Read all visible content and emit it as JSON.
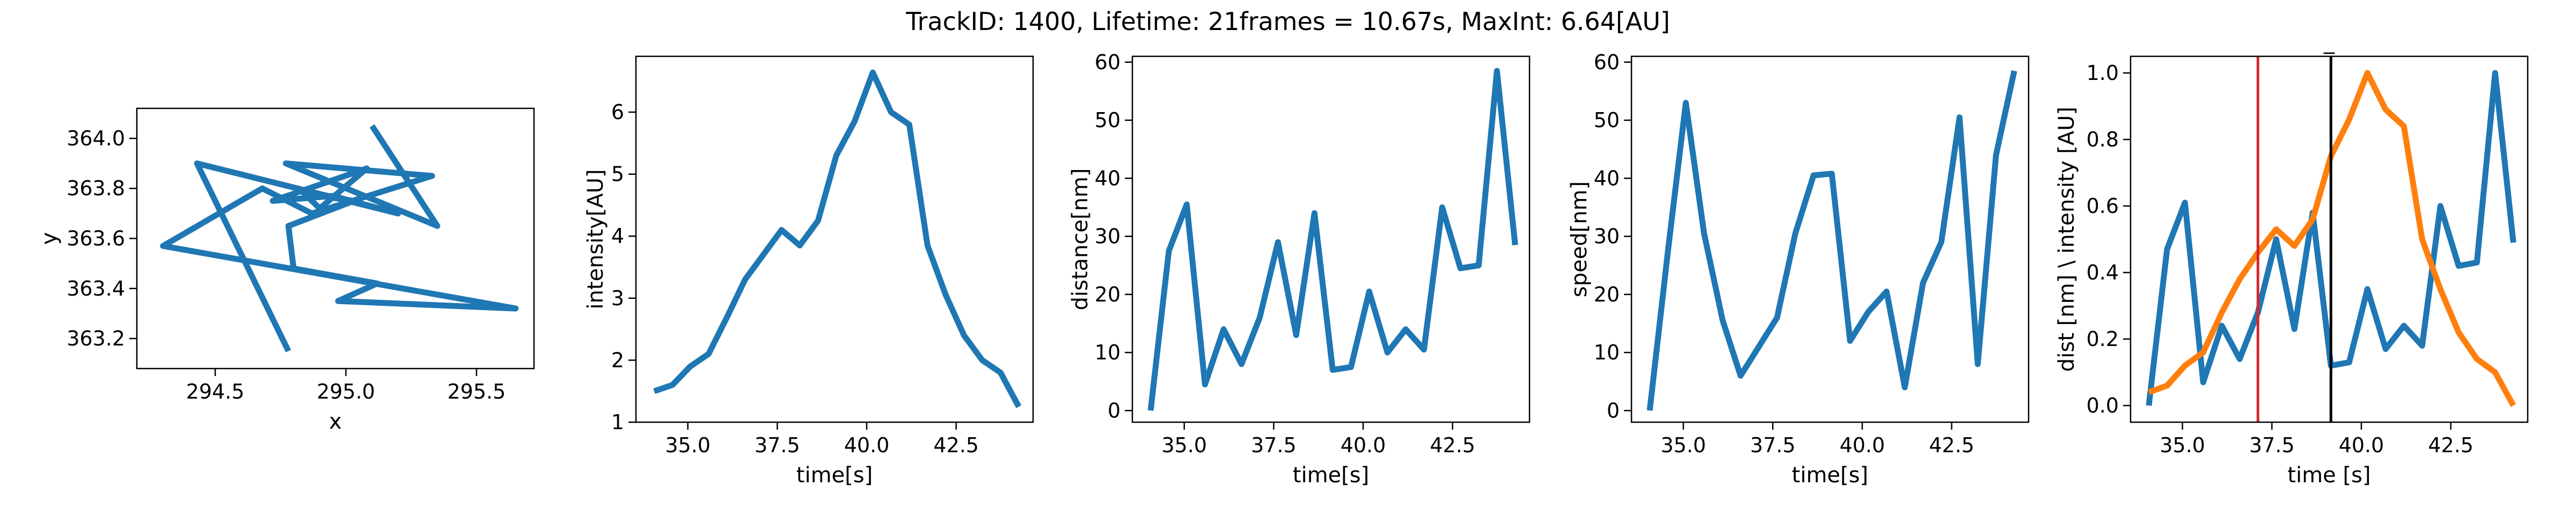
{
  "figure": {
    "title": "TrackID: 1400, Lifetime: 21frames = 10.67s, MaxInt: 6.64[AU]"
  },
  "colors": {
    "line_blue": "#1f77b4",
    "line_orange": "#ff7f0e",
    "vline_red": "#d62728",
    "vline_black": "#000000"
  },
  "chart_data": [
    {
      "type": "line",
      "xlabel": "x",
      "ylabel": "y",
      "xlim": [
        294.2,
        295.72
      ],
      "ylim": [
        363.08,
        364.12
      ],
      "xticks": [
        294.5,
        295.0,
        295.5
      ],
      "xtick_labels": [
        "294.5",
        "295.0",
        "295.5"
      ],
      "yticks": [
        363.2,
        363.4,
        363.6,
        363.8,
        364.0
      ],
      "ytick_labels": [
        "363.2",
        "363.4",
        "363.6",
        "363.8",
        "364.0"
      ],
      "grid": false,
      "series": [
        {
          "x": [
            295.1,
            295.35,
            294.77,
            295.33,
            294.87,
            294.68,
            294.3,
            295.65,
            294.97,
            295.12,
            294.8,
            294.78,
            295.03,
            294.84,
            294.9,
            295.08,
            294.72,
            294.95,
            295.2,
            294.43,
            294.78
          ],
          "y": [
            364.05,
            363.65,
            363.9,
            363.85,
            363.7,
            363.8,
            363.57,
            363.32,
            363.35,
            363.42,
            363.48,
            363.65,
            363.75,
            363.78,
            363.72,
            363.88,
            363.75,
            363.77,
            363.7,
            363.9,
            363.15
          ]
        }
      ]
    },
    {
      "type": "line",
      "xlabel": "time[s]",
      "ylabel": "intensity[AU]",
      "xlim": [
        33.55,
        44.65
      ],
      "ylim": [
        1.0,
        6.9
      ],
      "xticks": [
        35.0,
        37.5,
        40.0,
        42.5
      ],
      "xtick_labels": [
        "35.0",
        "37.5",
        "40.0",
        "42.5"
      ],
      "yticks": [
        1,
        2,
        3,
        4,
        5,
        6
      ],
      "ytick_labels": [
        "1",
        "2",
        "3",
        "4",
        "5",
        "6"
      ],
      "grid": false,
      "x": [
        34.06,
        34.57,
        35.07,
        35.58,
        36.1,
        36.6,
        37.11,
        37.62,
        38.13,
        38.64,
        39.15,
        39.66,
        40.17,
        40.68,
        41.19,
        41.7,
        42.21,
        42.72,
        43.23,
        43.74,
        44.25
      ],
      "series": [
        {
          "values": [
            1.5,
            1.6,
            1.9,
            2.1,
            2.7,
            3.3,
            3.7,
            4.1,
            3.85,
            4.25,
            5.3,
            5.85,
            6.64,
            6.0,
            5.8,
            3.85,
            3.05,
            2.4,
            2.0,
            1.8,
            1.25
          ]
        }
      ]
    },
    {
      "type": "line",
      "xlabel": "time[s]",
      "ylabel": "distance[nm]",
      "xlim": [
        33.55,
        44.65
      ],
      "ylim": [
        -2.0,
        61.0
      ],
      "xticks": [
        35.0,
        37.5,
        40.0,
        42.5
      ],
      "xtick_labels": [
        "35.0",
        "37.5",
        "40.0",
        "42.5"
      ],
      "yticks": [
        0,
        10,
        20,
        30,
        40,
        50,
        60
      ],
      "ytick_labels": [
        "0",
        "10",
        "20",
        "30",
        "40",
        "50",
        "60"
      ],
      "grid": false,
      "x": [
        34.06,
        34.57,
        35.07,
        35.58,
        36.1,
        36.6,
        37.11,
        37.62,
        38.13,
        38.64,
        39.15,
        39.66,
        40.17,
        40.68,
        41.19,
        41.7,
        42.21,
        42.72,
        43.23,
        43.74,
        44.25
      ],
      "series": [
        {
          "values": [
            0,
            27.5,
            35.5,
            4.5,
            14,
            8,
            16,
            29,
            13,
            34,
            7,
            7.5,
            20.5,
            10,
            14,
            10.5,
            35,
            24.5,
            25,
            58.5,
            28.5
          ]
        }
      ]
    },
    {
      "type": "line",
      "xlabel": "time[s]",
      "ylabel": "speed[nm]",
      "xlim": [
        33.55,
        44.65
      ],
      "ylim": [
        -2.0,
        61.0
      ],
      "xticks": [
        35.0,
        37.5,
        40.0,
        42.5
      ],
      "xtick_labels": [
        "35.0",
        "37.5",
        "40.0",
        "42.5"
      ],
      "yticks": [
        0,
        10,
        20,
        30,
        40,
        50,
        60
      ],
      "ytick_labels": [
        "0",
        "10",
        "20",
        "30",
        "40",
        "50",
        "60"
      ],
      "grid": false,
      "x": [
        34.06,
        34.57,
        35.07,
        35.58,
        36.1,
        36.6,
        37.11,
        37.62,
        38.13,
        38.64,
        39.15,
        39.66,
        40.17,
        40.68,
        41.19,
        41.7,
        42.21,
        42.72,
        43.23,
        43.74,
        44.25
      ],
      "series": [
        {
          "values": [
            0,
            27.5,
            53,
            30.5,
            15.5,
            6,
            11,
            16,
            30.5,
            40.5,
            40.8,
            12,
            17,
            20.5,
            4,
            22,
            29,
            50.5,
            8,
            44,
            58.5
          ]
        }
      ]
    },
    {
      "type": "line",
      "title": "_",
      "xlabel": "time [s]",
      "ylabel": "dist [nm] \\ intensity [AU]",
      "xlim": [
        33.55,
        44.65
      ],
      "ylim": [
        -0.05,
        1.05
      ],
      "xticks": [
        35.0,
        37.5,
        40.0,
        42.5
      ],
      "xtick_labels": [
        "35.0",
        "37.5",
        "40.0",
        "42.5"
      ],
      "yticks": [
        0.0,
        0.2,
        0.4,
        0.6,
        0.8,
        1.0
      ],
      "ytick_labels": [
        "0.0",
        "0.2",
        "0.4",
        "0.6",
        "0.8",
        "1.0"
      ],
      "grid": false,
      "x": [
        34.06,
        34.57,
        35.07,
        35.58,
        36.1,
        36.6,
        37.11,
        37.62,
        38.13,
        38.64,
        39.15,
        39.66,
        40.17,
        40.68,
        41.19,
        41.7,
        42.21,
        42.72,
        43.23,
        43.74,
        44.25
      ],
      "series": [
        {
          "color": "#1f77b4",
          "values": [
            0.0,
            0.47,
            0.61,
            0.07,
            0.24,
            0.14,
            0.28,
            0.5,
            0.23,
            0.58,
            0.12,
            0.13,
            0.35,
            0.17,
            0.24,
            0.18,
            0.6,
            0.42,
            0.43,
            1.0,
            0.49
          ]
        },
        {
          "color": "#ff7f0e",
          "values": [
            0.04,
            0.06,
            0.12,
            0.16,
            0.28,
            0.38,
            0.46,
            0.53,
            0.48,
            0.56,
            0.75,
            0.86,
            1.0,
            0.89,
            0.84,
            0.5,
            0.35,
            0.22,
            0.14,
            0.1,
            0.0
          ]
        }
      ],
      "vlines": [
        {
          "x": 37.11,
          "color": "#d62728"
        },
        {
          "x": 39.15,
          "color": "#000000"
        }
      ]
    }
  ]
}
